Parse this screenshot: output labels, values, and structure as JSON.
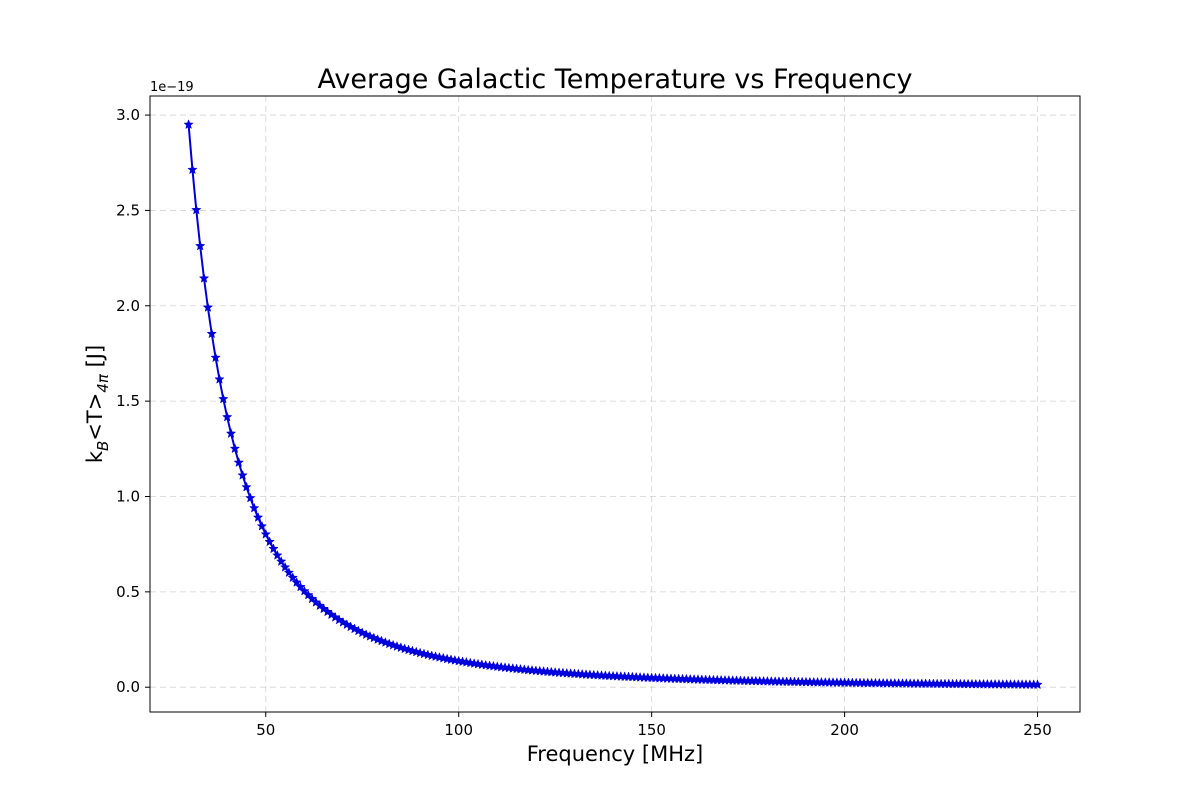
{
  "chart_data": {
    "type": "line",
    "title": "Average Galactic Temperature vs Frequency",
    "xlabel": "Frequency [MHz]",
    "ylabel": "k_B<T>_4π [J]",
    "ylabel_parts": {
      "base": "k",
      "sub1": "B",
      "middle": "<T>",
      "sub2": "4π",
      "tail": " [J]"
    },
    "y_offset_text": "1e−19",
    "xlim": [
      20,
      261
    ],
    "ylim": [
      -0.13,
      3.1
    ],
    "xticks": [
      50,
      100,
      150,
      200,
      250
    ],
    "xtick_labels": [
      "50",
      "100",
      "150",
      "200",
      "250"
    ],
    "yticks": [
      0.0,
      0.5,
      1.0,
      1.5,
      2.0,
      2.5,
      3.0
    ],
    "ytick_labels": [
      "0.0",
      "0.5",
      "1.0",
      "1.5",
      "2.0",
      "2.5",
      "3.0"
    ],
    "y_scale_factor": 1e-19,
    "grid": true,
    "marker": "star",
    "series": [
      {
        "color": "#0000dd",
        "x_start": 30,
        "x_end": 250,
        "x_step": 1,
        "y_at_start": 2.95,
        "power_law_exponent": -2.55
      }
    ]
  }
}
